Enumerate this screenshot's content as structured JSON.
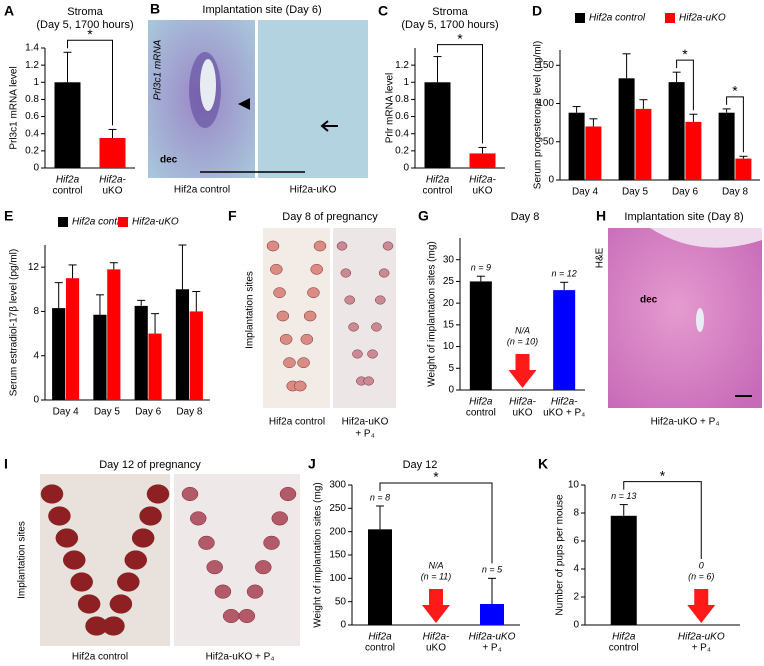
{
  "chart_data": [
    {
      "type": "bar",
      "letter": "A",
      "title": "Stroma",
      "subtitle": "(Day 5, 1700 hours)",
      "ylabel": "Prl3c1 mRNA level",
      "categories": [
        [
          "Hif2a",
          "control"
        ],
        [
          "Hif2a-",
          "uKO"
        ]
      ],
      "values": [
        1.0,
        0.35
      ],
      "errors": [
        0.35,
        0.1
      ],
      "colors": [
        "#000000",
        "#ff0000"
      ],
      "ylim": [
        0,
        1.4
      ],
      "yticks": [
        0,
        0.2,
        0.4,
        0.6,
        0.8,
        1,
        1.2,
        1.4
      ],
      "significance": [
        {
          "from": 0,
          "to": 1,
          "label": "*"
        }
      ]
    },
    {
      "type": "bar",
      "letter": "C",
      "title": "Stroma",
      "subtitle": "(Day 5, 1700 hours)",
      "ylabel": "Prlr mRNA level",
      "categories": [
        [
          "Hif2a",
          "control"
        ],
        [
          "Hif2a-",
          "uKO"
        ]
      ],
      "values": [
        1.0,
        0.17
      ],
      "errors": [
        0.3,
        0.07
      ],
      "colors": [
        "#000000",
        "#ff0000"
      ],
      "ylim": [
        0,
        1.4
      ],
      "yticks": [
        0,
        0.2,
        0.4,
        0.6,
        0.8,
        1,
        1.2
      ],
      "significance": [
        {
          "from": 0,
          "to": 1,
          "label": "*"
        }
      ]
    },
    {
      "type": "grouped_bar",
      "letter": "D",
      "ylabel": "Serum progesterone level (ng/ml)",
      "categories": [
        [
          "Day 4"
        ],
        [
          "Day 5"
        ],
        [
          "Day 6"
        ],
        [
          "Day 8"
        ]
      ],
      "series": [
        {
          "name": "Hif2a control",
          "color": "#000000",
          "values": [
            88,
            133,
            128,
            88
          ],
          "errors": [
            8,
            32,
            13,
            5
          ]
        },
        {
          "name": "Hif2a-uKO",
          "color": "#ff0000",
          "values": [
            70,
            93,
            76,
            28
          ],
          "errors": [
            10,
            12,
            10,
            3
          ]
        }
      ],
      "ylim": [
        0,
        170
      ],
      "yticks": [
        0,
        50,
        100,
        150
      ],
      "significance": [
        {
          "category": 2,
          "label": "*"
        },
        {
          "category": 3,
          "label": "*"
        }
      ]
    },
    {
      "type": "grouped_bar",
      "letter": "E",
      "ylabel": "Serum estradiol-17β level (pg/ml)",
      "categories": [
        [
          "Day 4"
        ],
        [
          "Day 5"
        ],
        [
          "Day 6"
        ],
        [
          "Day 8"
        ]
      ],
      "series": [
        {
          "name": "Hif2a control",
          "color": "#000000",
          "values": [
            8.3,
            7.7,
            8.5,
            10
          ],
          "errors": [
            2.3,
            1.8,
            0.5,
            4
          ]
        },
        {
          "name": "Hif2a-uKO",
          "color": "#ff0000",
          "values": [
            11,
            11.8,
            6,
            8
          ],
          "errors": [
            1.2,
            0.6,
            1.8,
            1.8
          ]
        }
      ],
      "ylim": [
        0,
        14
      ],
      "yticks": [
        0,
        4,
        8,
        12
      ]
    },
    {
      "type": "bar",
      "letter": "G",
      "title": "Day 8",
      "ylabel": "Weight of implantation sites (mg)",
      "categories": [
        [
          "Hif2a",
          "control"
        ],
        [
          "Hif2a-",
          "uKO"
        ],
        [
          "Hif2a-",
          "uKO + P₄"
        ]
      ],
      "values": [
        25,
        null,
        23
      ],
      "errors": [
        1.2,
        null,
        1.8
      ],
      "colors": [
        "#000000",
        "#ff0000",
        "#0000ff"
      ],
      "annotations": [
        [
          "n = 9"
        ],
        [
          "N/A",
          "(n = 10)"
        ],
        [
          "n = 12"
        ]
      ],
      "ylim": [
        0,
        35
      ],
      "yticks": [
        0,
        5,
        10,
        15,
        20,
        25,
        30
      ]
    },
    {
      "type": "bar",
      "letter": "J",
      "title": "Day 12",
      "ylabel": "Weight of implantation sites (mg)",
      "categories": [
        [
          "Hif2a",
          "control"
        ],
        [
          "Hif2a-",
          "uKO"
        ],
        [
          "Hif2a-uKO",
          "+ P₄"
        ]
      ],
      "values": [
        205,
        null,
        45
      ],
      "errors": [
        50,
        null,
        55
      ],
      "colors": [
        "#000000",
        "#ff0000",
        "#0000ff"
      ],
      "annotations": [
        [
          "n = 8"
        ],
        [
          "N/A",
          "(n = 11)"
        ],
        [
          "n = 5"
        ]
      ],
      "ylim": [
        0,
        300
      ],
      "yticks": [
        0,
        50,
        100,
        150,
        200,
        250,
        300
      ],
      "significance": [
        {
          "from": 0,
          "to": 2,
          "label": "*"
        }
      ]
    },
    {
      "type": "bar",
      "letter": "K",
      "ylabel": "Number of pups per mouse",
      "categories": [
        [
          "Hif2a",
          "control"
        ],
        [
          "Hif2a-uKO",
          "+ P₄"
        ]
      ],
      "values": [
        7.8,
        0
      ],
      "errors": [
        0.8,
        null
      ],
      "colors": [
        "#000000",
        "#ff0000"
      ],
      "annotations": [
        [
          "n = 13"
        ],
        [
          "(n = 6)"
        ]
      ],
      "value_labels": [
        null,
        "0"
      ],
      "ylim": [
        0,
        10
      ],
      "yticks": [
        0,
        2,
        4,
        6,
        8,
        10
      ],
      "significance": [
        {
          "from": 0,
          "to": 1,
          "label": "*"
        }
      ]
    }
  ],
  "image_panels": [
    {
      "letter": "B",
      "title": "Implantation site (Day 6)",
      "axis_label": "Prl3c1 mRNA",
      "labels": [
        "dec"
      ],
      "captions": [
        [
          "Hif2a control"
        ],
        [
          "Hif2a-uKO"
        ]
      ]
    },
    {
      "letter": "F",
      "title": "Day 8 of pregnancy",
      "axis_label": "Implantation sites",
      "captions": [
        [
          "Hif2a control"
        ],
        [
          "Hif2a-uKO",
          "+ P₄"
        ]
      ]
    },
    {
      "letter": "H",
      "title": "Implantation site (Day 8)",
      "axis_label": "H&E",
      "labels": [
        "dec"
      ],
      "captions": [
        [
          "Hif2a-uKO + P₄"
        ]
      ]
    },
    {
      "letter": "I",
      "title": "Day 12 of pregnancy",
      "axis_label": "Implantation sites",
      "captions": [
        [
          "Hif2a control"
        ],
        [
          "Hif2a-uKO + P₄"
        ]
      ]
    }
  ]
}
